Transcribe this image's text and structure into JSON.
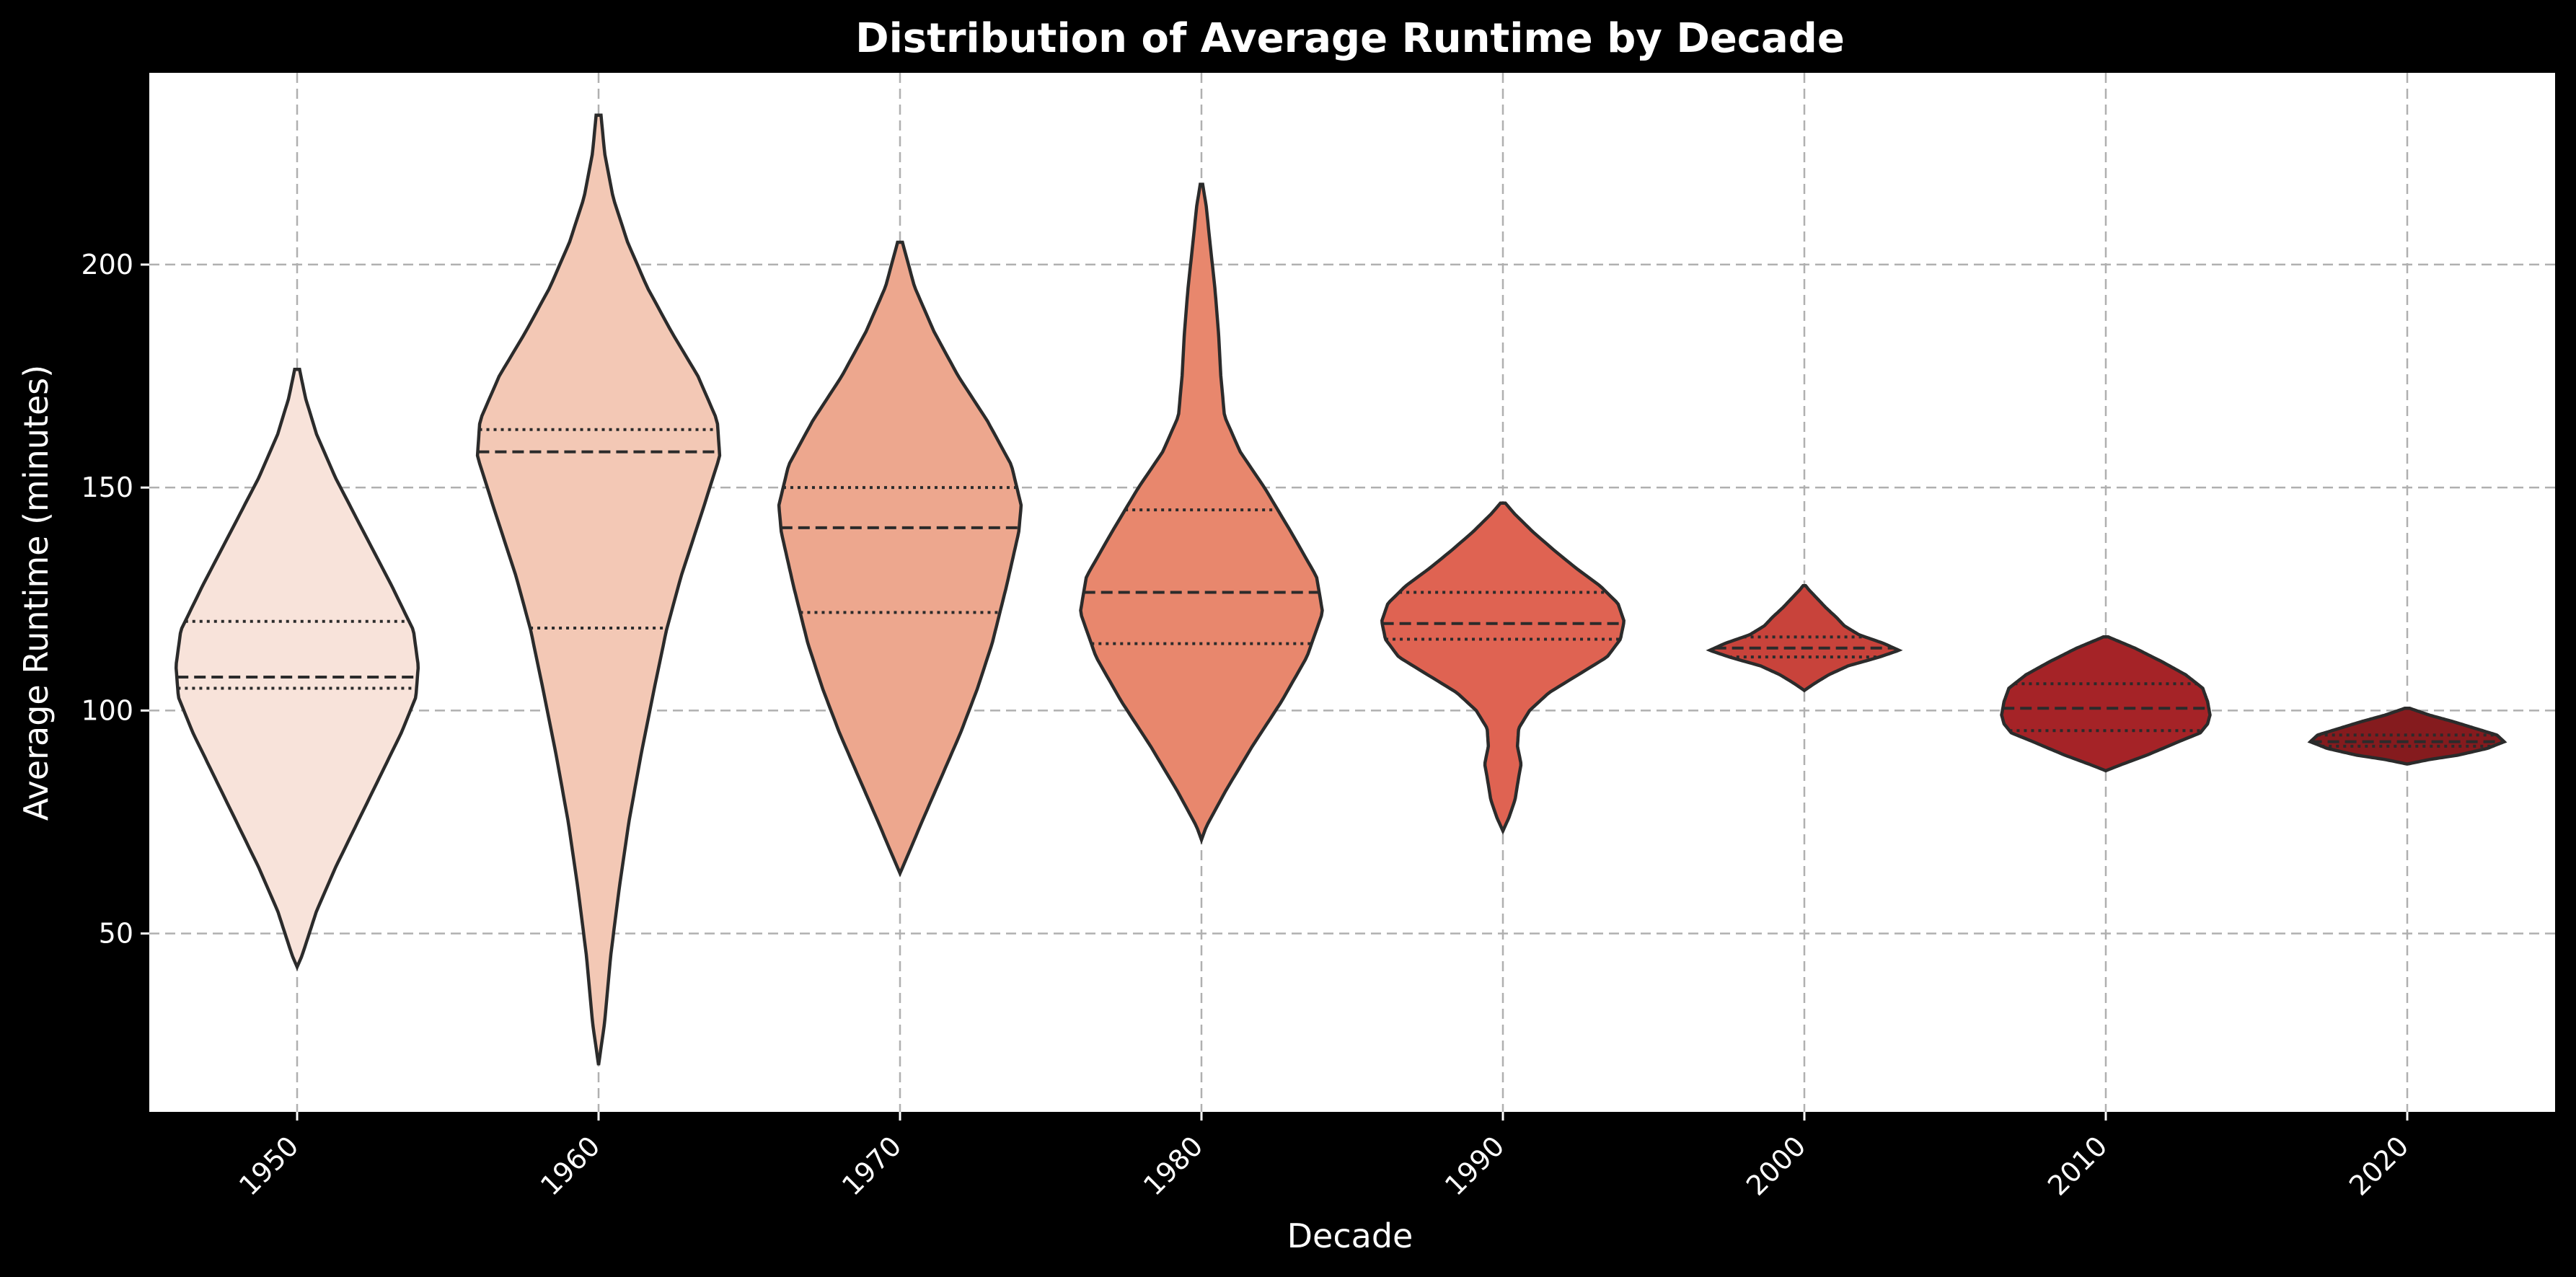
{
  "chart_data": {
    "type": "violin",
    "title": "Distribution of Average Runtime by Decade",
    "xlabel": "Decade",
    "ylabel": "Average Runtime (minutes)",
    "ylim": [
      10,
      243
    ],
    "yticks": [
      50,
      100,
      150,
      200
    ],
    "grid": true,
    "categories": [
      "1950",
      "1960",
      "1970",
      "1980",
      "1990",
      "2000",
      "2010",
      "2020"
    ],
    "colors": [
      "#f8e3da",
      "#f3c8b5",
      "#eda78e",
      "#e8876d",
      "#df6352",
      "#c8433b",
      "#a52327",
      "#851b1e"
    ],
    "violins": [
      {
        "decade": "1950",
        "min": 42.5,
        "max": 176.5,
        "q1": 105,
        "median": 107.5,
        "q3": 120,
        "profile": [
          [
            42.5,
            0
          ],
          [
            45,
            0.04
          ],
          [
            55,
            0.16
          ],
          [
            65,
            0.32
          ],
          [
            75,
            0.5
          ],
          [
            85,
            0.68
          ],
          [
            95,
            0.86
          ],
          [
            103,
            0.98
          ],
          [
            110,
            1.0
          ],
          [
            118,
            0.96
          ],
          [
            128,
            0.78
          ],
          [
            140,
            0.55
          ],
          [
            152,
            0.32
          ],
          [
            162,
            0.16
          ],
          [
            170,
            0.07
          ],
          [
            176.5,
            0.02
          ]
        ]
      },
      {
        "decade": "1960",
        "min": 20.5,
        "max": 233.5,
        "q1": 118.5,
        "median": 158,
        "q3": 163,
        "profile": [
          [
            20.5,
            0
          ],
          [
            30,
            0.05
          ],
          [
            45,
            0.1
          ],
          [
            60,
            0.17
          ],
          [
            75,
            0.25
          ],
          [
            90,
            0.35
          ],
          [
            105,
            0.46
          ],
          [
            118,
            0.56
          ],
          [
            130,
            0.68
          ],
          [
            145,
            0.86
          ],
          [
            157,
            1.0
          ],
          [
            165,
            0.98
          ],
          [
            175,
            0.82
          ],
          [
            185,
            0.6
          ],
          [
            195,
            0.4
          ],
          [
            205,
            0.24
          ],
          [
            215,
            0.12
          ],
          [
            225,
            0.05
          ],
          [
            233.5,
            0.02
          ]
        ]
      },
      {
        "decade": "1970",
        "min": 63.5,
        "max": 205,
        "q1": 122,
        "median": 141,
        "q3": 150,
        "profile": [
          [
            63.5,
            0
          ],
          [
            66,
            0.04
          ],
          [
            75,
            0.18
          ],
          [
            85,
            0.34
          ],
          [
            95,
            0.5
          ],
          [
            105,
            0.64
          ],
          [
            115,
            0.76
          ],
          [
            128,
            0.88
          ],
          [
            140,
            0.98
          ],
          [
            146,
            1.0
          ],
          [
            155,
            0.92
          ],
          [
            165,
            0.72
          ],
          [
            175,
            0.48
          ],
          [
            185,
            0.28
          ],
          [
            195,
            0.12
          ],
          [
            205,
            0.02
          ]
        ]
      },
      {
        "decade": "1980",
        "min": 71,
        "max": 218,
        "q1": 115,
        "median": 126.5,
        "q3": 145,
        "profile": [
          [
            71,
            0
          ],
          [
            74,
            0.04
          ],
          [
            82,
            0.2
          ],
          [
            92,
            0.42
          ],
          [
            102,
            0.66
          ],
          [
            112,
            0.87
          ],
          [
            122,
            1.0
          ],
          [
            130,
            0.95
          ],
          [
            140,
            0.74
          ],
          [
            150,
            0.52
          ],
          [
            158,
            0.32
          ],
          [
            166,
            0.19
          ],
          [
            175,
            0.16
          ],
          [
            185,
            0.14
          ],
          [
            195,
            0.11
          ],
          [
            205,
            0.07
          ],
          [
            213,
            0.04
          ],
          [
            218,
            0.01
          ]
        ]
      },
      {
        "decade": "1990",
        "min": 73,
        "max": 146.5,
        "q1": 116,
        "median": 119.5,
        "q3": 126.5,
        "profile": [
          [
            73,
            0
          ],
          [
            76,
            0.05
          ],
          [
            80,
            0.1
          ],
          [
            85,
            0.13
          ],
          [
            88,
            0.15
          ],
          [
            92,
            0.12
          ],
          [
            96,
            0.13
          ],
          [
            100,
            0.22
          ],
          [
            104,
            0.38
          ],
          [
            108,
            0.62
          ],
          [
            112,
            0.86
          ],
          [
            116,
            0.97
          ],
          [
            120,
            1.0
          ],
          [
            124,
            0.95
          ],
          [
            128,
            0.8
          ],
          [
            132,
            0.6
          ],
          [
            136,
            0.42
          ],
          [
            140,
            0.25
          ],
          [
            144,
            0.1
          ],
          [
            146.5,
            0.02
          ]
        ]
      },
      {
        "decade": "2000",
        "min": 104.5,
        "max": 128,
        "q1": 112,
        "median": 114,
        "q3": 116.5,
        "profile": [
          [
            104.5,
            0
          ],
          [
            106,
            0.08
          ],
          [
            108,
            0.2
          ],
          [
            110,
            0.36
          ],
          [
            112,
            0.62
          ],
          [
            113.5,
            0.78
          ],
          [
            115,
            0.66
          ],
          [
            117,
            0.45
          ],
          [
            119,
            0.33
          ],
          [
            121,
            0.26
          ],
          [
            123,
            0.18
          ],
          [
            125,
            0.11
          ],
          [
            127,
            0.04
          ],
          [
            128,
            0.01
          ]
        ]
      },
      {
        "decade": "2010",
        "min": 86.5,
        "max": 116.5,
        "q1": 95.5,
        "median": 100.5,
        "q3": 106,
        "profile": [
          [
            86.5,
            0
          ],
          [
            88,
            0.14
          ],
          [
            90,
            0.34
          ],
          [
            93,
            0.6
          ],
          [
            95,
            0.78
          ],
          [
            97,
            0.84
          ],
          [
            99,
            0.86
          ],
          [
            102,
            0.84
          ],
          [
            105,
            0.8
          ],
          [
            108,
            0.66
          ],
          [
            111,
            0.46
          ],
          [
            114,
            0.24
          ],
          [
            116.5,
            0.02
          ]
        ]
      },
      {
        "decade": "2020",
        "min": 88,
        "max": 100.5,
        "q1": 92,
        "median": 93,
        "q3": 94.5,
        "profile": [
          [
            88,
            0
          ],
          [
            89,
            0.18
          ],
          [
            90,
            0.42
          ],
          [
            91.5,
            0.66
          ],
          [
            93,
            0.8
          ],
          [
            94.5,
            0.74
          ],
          [
            96,
            0.56
          ],
          [
            97.5,
            0.38
          ],
          [
            99,
            0.18
          ],
          [
            100.5,
            0.02
          ]
        ]
      }
    ]
  }
}
